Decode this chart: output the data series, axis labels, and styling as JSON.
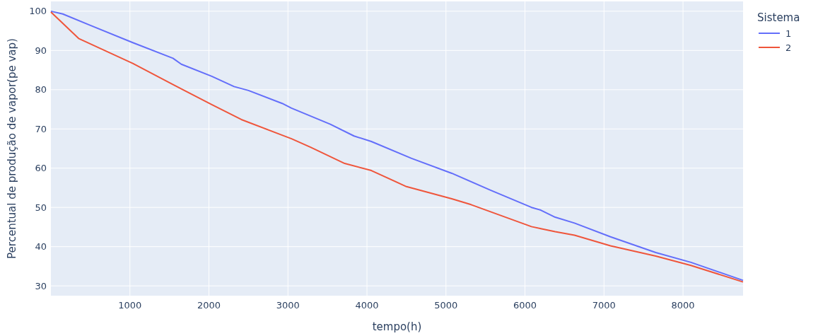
{
  "chart_data": {
    "type": "line",
    "xlabel": "tempo(h)",
    "ylabel": "Percentual de produção de vapor(pe vap)",
    "legend_title": "Sistema",
    "legend": "top right",
    "grid": true,
    "line_style": "solid",
    "xlim": [
      0,
      8760
    ],
    "ylim": [
      27.5,
      102.5
    ],
    "xticks": [
      1000,
      2000,
      3000,
      4000,
      5000,
      6000,
      7000,
      8000
    ],
    "yticks": [
      30,
      40,
      50,
      60,
      70,
      80,
      90,
      100
    ],
    "series": [
      {
        "name": "1",
        "color": "#636efa",
        "x": [
          0,
          150,
          500,
          1036,
          1545,
          1650,
          2036,
          2318,
          2500,
          2927,
          3045,
          3536,
          3836,
          4055,
          4564,
          5073,
          5564,
          6082,
          6200,
          6382,
          6627,
          7082,
          7655,
          8100,
          8760
        ],
        "values": [
          100,
          99.3,
          96.4,
          92.0,
          88.0,
          86.5,
          83.4,
          80.8,
          79.8,
          76.5,
          75.3,
          71.2,
          68.2,
          66.8,
          62.5,
          58.7,
          54.4,
          50.0,
          49.3,
          47.5,
          46.0,
          42.5,
          38.5,
          36.0,
          31.4
        ]
      },
      {
        "name": "2",
        "color": "#ef553b",
        "x": [
          0,
          355,
          1036,
          1564,
          2036,
          2410,
          2927,
          3045,
          3291,
          3718,
          4055,
          4500,
          5073,
          5318,
          6082,
          6200,
          6382,
          6627,
          7082,
          7655,
          8100,
          8760
        ],
        "values": [
          99.8,
          93.0,
          86.7,
          81.1,
          76.2,
          72.4,
          68.4,
          67.5,
          65.3,
          61.2,
          59.4,
          55.3,
          52.2,
          50.7,
          45.1,
          44.6,
          43.8,
          42.9,
          40.2,
          37.6,
          35.2,
          31.0
        ]
      }
    ]
  }
}
